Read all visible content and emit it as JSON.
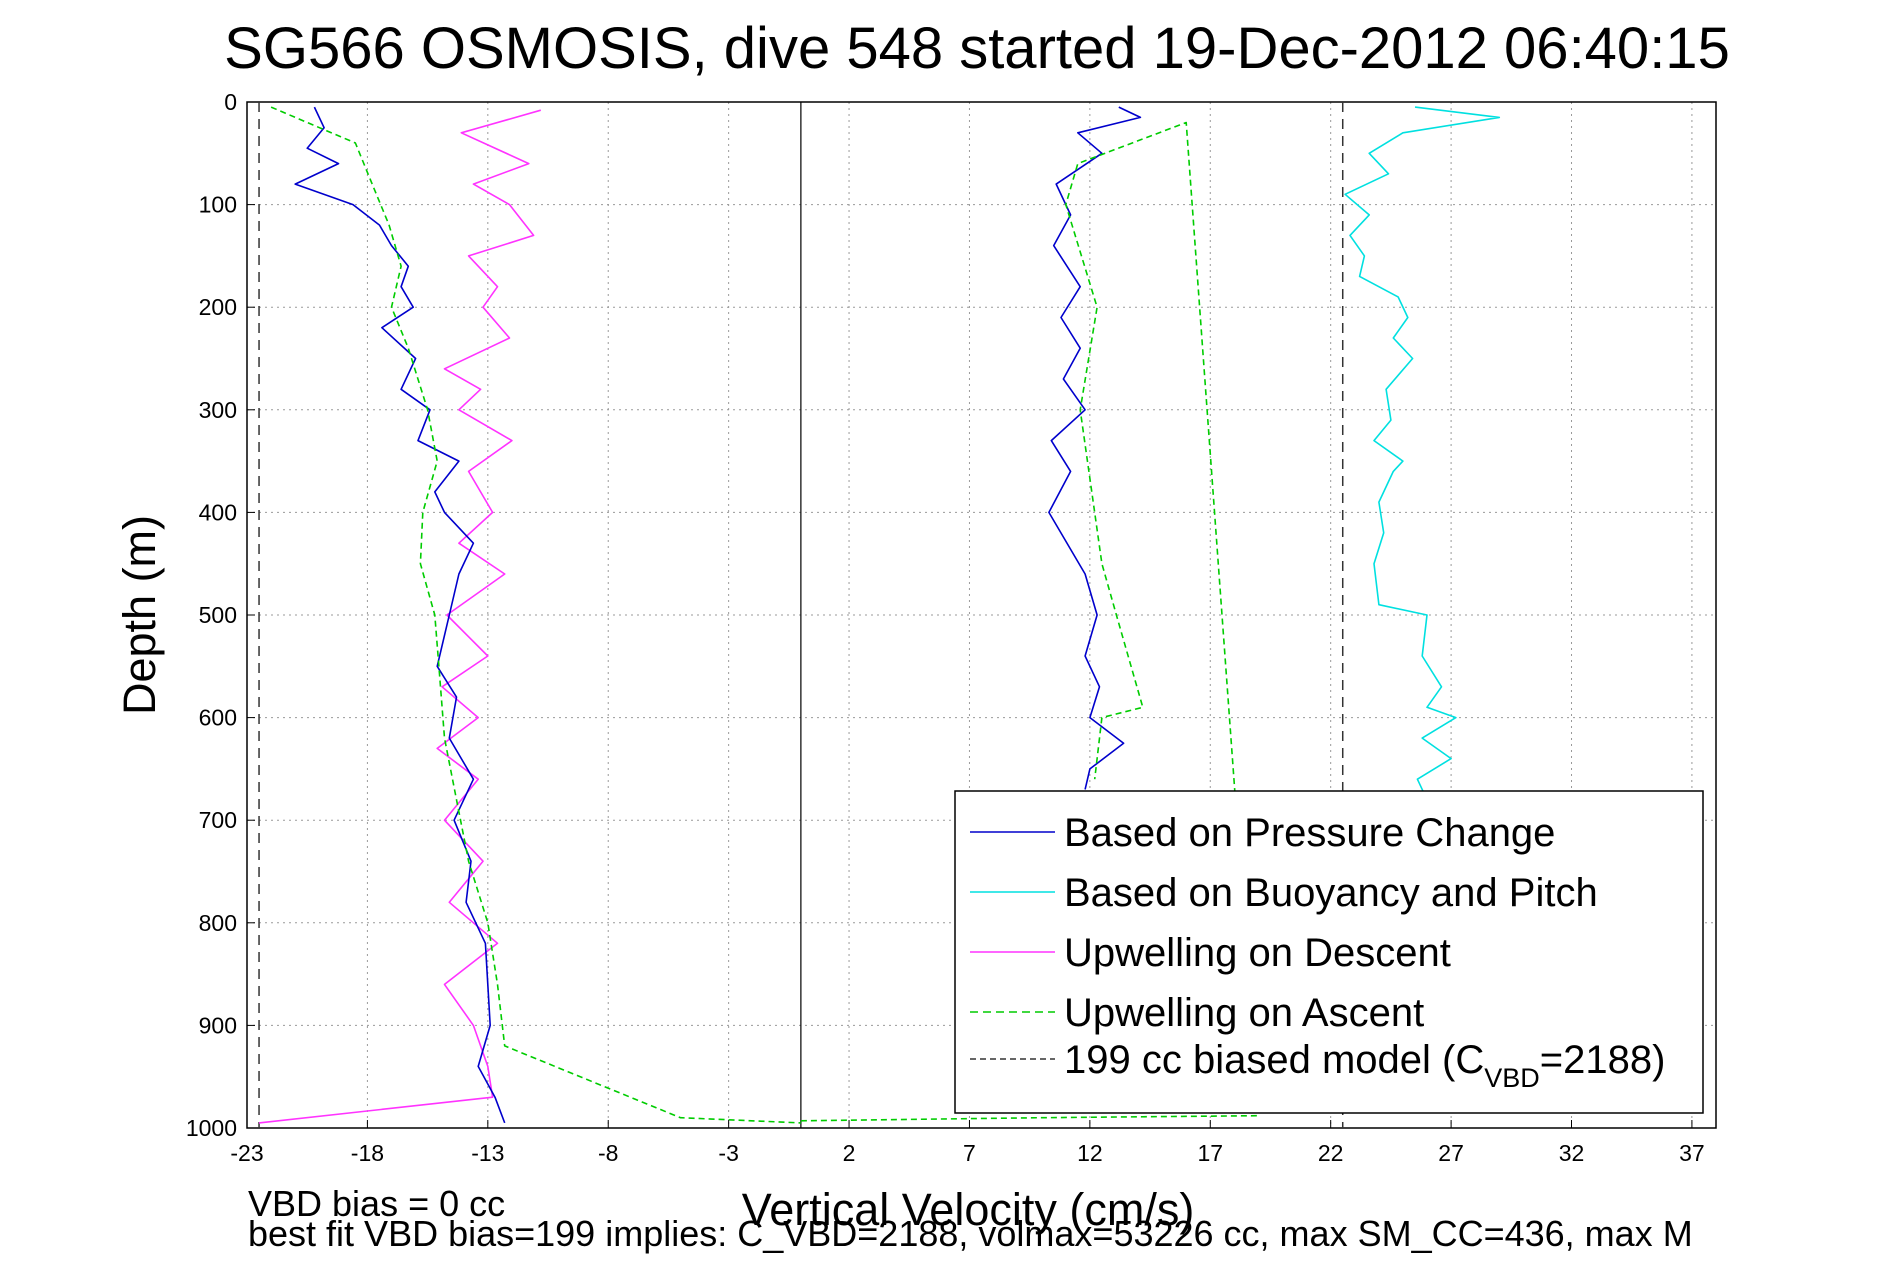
{
  "chart_data": {
    "type": "line",
    "title": "SG566 OSMOSIS, dive 548 started 19-Dec-2012 06:40:15",
    "xlabel": "Vertical Velocity (cm/s)",
    "ylabel": "Depth (m)",
    "xlim": [
      -23,
      38
    ],
    "ylim": [
      1000,
      0
    ],
    "x_ticks": [
      -23,
      -18,
      -13,
      -8,
      -3,
      2,
      7,
      12,
      17,
      22,
      27,
      32,
      37
    ],
    "y_ticks": [
      0,
      100,
      200,
      300,
      400,
      500,
      600,
      700,
      800,
      900,
      1000
    ],
    "x_tick_labels": [
      "-23",
      "-18",
      "-13",
      "-8",
      "-3",
      "2",
      "7",
      "12",
      "17",
      "22",
      "27",
      "32",
      "37"
    ],
    "y_tick_labels": [
      "0",
      "100",
      "200",
      "300",
      "400",
      "500",
      "600",
      "700",
      "800",
      "900",
      "1000"
    ],
    "grid": true,
    "legend_position": "bottom-right",
    "zero_line_x": 0,
    "model_lines_x": [
      -22.5,
      22.5
    ],
    "series": [
      {
        "name": "Based on Pressure Change",
        "color": "#0000cc",
        "style": "solid",
        "segments": [
          {
            "x": [
              -20.2,
              -19.8,
              -20.5,
              -19.2,
              -21.0,
              -18.6,
              -17.5,
              -17.0,
              -16.3,
              -16.6,
              -16.1,
              -17.4,
              -16.0,
              -16.6,
              -15.4,
              -15.9,
              -14.2,
              -15.2,
              -14.8,
              -13.6,
              -14.2,
              -14.6,
              -15.1,
              -14.3,
              -14.6,
              -13.6,
              -14.4,
              -13.7,
              -13.9,
              -13.1,
              -13.0,
              -12.9,
              -13.4,
              -12.7,
              -12.3
            ],
            "y": [
              5,
              25,
              45,
              60,
              80,
              100,
              120,
              140,
              160,
              180,
              200,
              220,
              250,
              280,
              300,
              330,
              350,
              380,
              400,
              430,
              460,
              500,
              550,
              580,
              620,
              660,
              700,
              740,
              780,
              820,
              860,
              900,
              940,
              970,
              995
            ]
          },
          {
            "x": [
              13.2,
              14.1,
              11.5,
              12.5,
              10.6,
              11.2,
              10.5,
              11.6,
              10.8,
              11.6,
              10.9,
              11.8,
              10.4,
              11.2,
              10.3,
              11.8,
              12.3,
              11.8,
              12.4,
              12.0,
              13.4,
              12.0,
              11.8
            ],
            "y": [
              5,
              15,
              30,
              50,
              80,
              110,
              140,
              180,
              210,
              240,
              270,
              300,
              330,
              360,
              400,
              460,
              500,
              540,
              570,
              600,
              625,
              650,
              670
            ]
          }
        ]
      },
      {
        "name": "Based on Buoyancy and Pitch",
        "color": "#00e0e0",
        "style": "solid",
        "segments": [
          {
            "x": [
              25.5,
              29.0,
              25.0,
              23.6,
              24.4,
              22.6,
              23.6,
              22.8,
              23.4,
              23.2,
              24.8,
              25.2,
              24.6,
              25.4,
              24.3,
              24.5,
              23.8,
              25.0,
              24.6,
              24.0,
              24.2,
              23.8,
              24.0,
              26.0,
              25.8,
              26.6,
              26.0,
              27.2,
              25.8,
              27.0,
              25.6,
              26.0
            ],
            "y": [
              5,
              15,
              30,
              50,
              70,
              90,
              110,
              130,
              150,
              170,
              190,
              210,
              230,
              250,
              280,
              310,
              330,
              350,
              360,
              390,
              420,
              450,
              490,
              500,
              540,
              570,
              590,
              600,
              620,
              640,
              660,
              680
            ]
          }
        ]
      },
      {
        "name": "Upwelling on Descent",
        "color": "#ff33ff",
        "style": "solid",
        "segments": [
          {
            "x": [
              -10.8,
              -14.1,
              -11.3,
              -13.6,
              -12.1,
              -11.1,
              -13.8,
              -12.6,
              -13.2,
              -12.1,
              -14.8,
              -13.3,
              -14.2,
              -12.0,
              -13.8,
              -12.8,
              -14.2,
              -12.3,
              -14.7,
              -13.0,
              -14.9,
              -13.4,
              -15.1,
              -13.4,
              -14.8,
              -13.2,
              -14.6,
              -12.6,
              -14.8,
              -13.6,
              -13.0,
              -12.8,
              -22.5
            ],
            "y": [
              8,
              30,
              60,
              80,
              100,
              130,
              150,
              180,
              200,
              230,
              260,
              280,
              300,
              330,
              360,
              400,
              430,
              460,
              500,
              540,
              570,
              600,
              630,
              660,
              700,
              740,
              780,
              820,
              860,
              900,
              940,
              970,
              995
            ]
          }
        ]
      },
      {
        "name": "Upwelling on Ascent",
        "color": "#00cc00",
        "style": "dashed",
        "segments": [
          {
            "x": [
              -22.0,
              -18.5,
              -17.8,
              -17.1,
              -16.6,
              -17.0,
              -16.3,
              -15.5,
              -15.1,
              -15.7,
              -15.8,
              -15.2,
              -15.0,
              -14.8,
              -14.3,
              -13.8,
              -13.0,
              -12.6,
              -12.3,
              -5.0,
              0.0
            ],
            "y": [
              5,
              40,
              80,
              120,
              160,
              200,
              240,
              300,
              350,
              400,
              450,
              500,
              560,
              620,
              680,
              740,
              800,
              860,
              920,
              990,
              995
            ]
          },
          {
            "x": [
              0.0,
              10.0,
              19.0,
              16.0,
              11.5,
              11.0,
              12.3,
              11.6,
              12.5,
              13.1,
              14.2,
              12.5,
              12.2
            ],
            "y": [
              993,
              990,
              988,
              20,
              60,
              100,
              200,
              300,
              450,
              500,
              590,
              600,
              660
            ]
          }
        ]
      },
      {
        "name": "199 cc biased model (C_VBD=2188)",
        "legend_label": "199 cc biased model (C",
        "legend_subscript": "VBD",
        "legend_suffix": "=2188)",
        "color": "#333333",
        "style": "dashed"
      }
    ]
  },
  "footer": {
    "line1": "VBD bias = 0 cc",
    "line2": "best fit VBD bias=199 implies: C_VBD=2188, volmax=53226 cc, max SM_CC=436, max M"
  }
}
